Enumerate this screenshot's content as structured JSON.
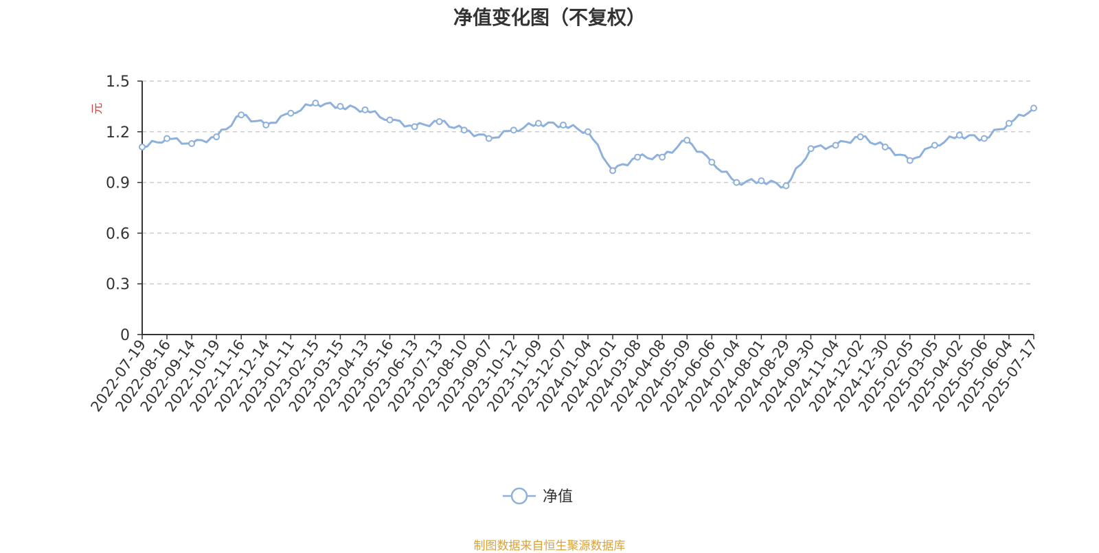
{
  "chart_data": {
    "type": "line",
    "title": "净值变化图（不复权）",
    "ylabel": "元",
    "ylim": [
      0,
      1.5
    ],
    "yticks": [
      "0",
      "0.3",
      "0.6",
      "0.9",
      "1.2",
      "1.5"
    ],
    "grid": true,
    "legend_position": "bottom-center",
    "categories": [
      "2022-07-19",
      "2022-08-16",
      "2022-09-14",
      "2022-10-19",
      "2022-11-16",
      "2022-12-14",
      "2023-01-11",
      "2023-02-15",
      "2023-03-15",
      "2023-04-13",
      "2023-05-16",
      "2023-06-13",
      "2023-07-13",
      "2023-08-10",
      "2023-09-07",
      "2023-10-12",
      "2023-11-09",
      "2023-12-07",
      "2024-01-04",
      "2024-02-01",
      "2024-03-08",
      "2024-04-08",
      "2024-05-09",
      "2024-06-06",
      "2024-07-04",
      "2024-08-01",
      "2024-08-29",
      "2024-09-30",
      "2024-11-04",
      "2024-12-02",
      "2024-12-30",
      "2025-02-05",
      "2025-03-05",
      "2025-04-02",
      "2025-05-06",
      "2025-06-04",
      "2025-07-17"
    ],
    "series": [
      {
        "name": "净值",
        "color": "#8eb0dc",
        "values": [
          1.11,
          1.16,
          1.13,
          1.17,
          1.3,
          1.24,
          1.31,
          1.37,
          1.35,
          1.33,
          1.27,
          1.23,
          1.26,
          1.21,
          1.16,
          1.21,
          1.25,
          1.24,
          1.2,
          0.97,
          1.05,
          1.05,
          1.15,
          1.02,
          0.9,
          0.91,
          0.88,
          1.1,
          1.12,
          1.17,
          1.11,
          1.03,
          1.12,
          1.18,
          1.16,
          1.25,
          1.34
        ]
      }
    ]
  },
  "source_text": "制图数据来自恒生聚源数据库",
  "source_color": "#d8a23a",
  "ylabel_color": "#e03c3c"
}
